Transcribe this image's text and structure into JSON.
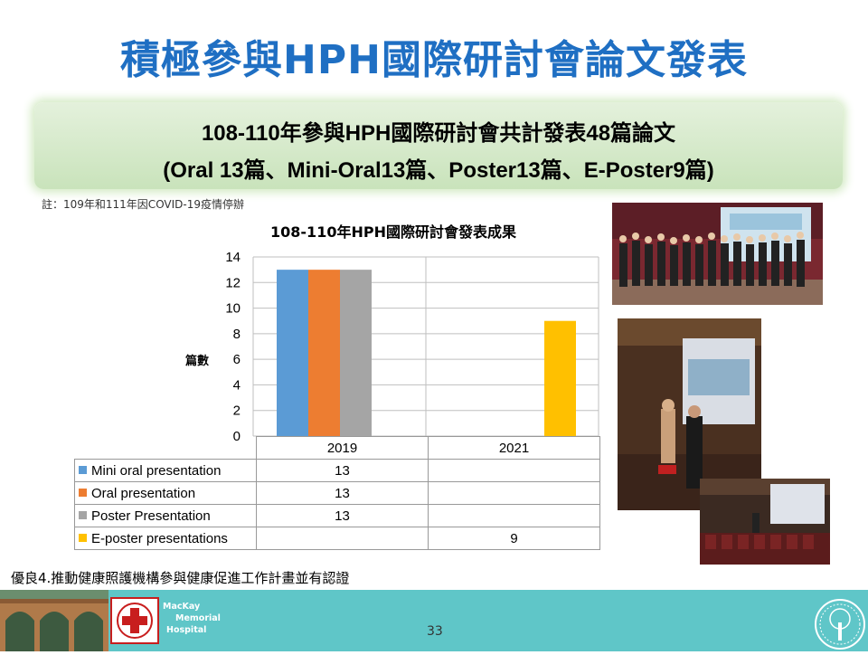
{
  "title": "積極參與HPH國際研討會論文發表",
  "banner": {
    "line1": "108-110年參與HPH國際研討會共計發表48篇論文",
    "line2": "(Oral 13篇、Mini-Oral13篇、Poster13篇、E-Poster9篇)"
  },
  "note": "註：109年和111年因COVID-19疫情停辦",
  "chart_data": {
    "type": "bar",
    "title": "108-110年HPH國際研討會發表成果",
    "ylabel": "篇數",
    "xlabel": "",
    "categories": [
      "2019",
      "2021"
    ],
    "ylim": [
      0,
      14
    ],
    "yticks": [
      0,
      2,
      4,
      6,
      8,
      10,
      12,
      14
    ],
    "grid": true,
    "legend": "table-below",
    "series": [
      {
        "name": "Mini oral presentation",
        "color": "#5b9bd5",
        "values": [
          13,
          null
        ]
      },
      {
        "name": "Oral presentation",
        "color": "#ed7d31",
        "values": [
          13,
          null
        ]
      },
      {
        "name": "Poster Presentation",
        "color": "#a5a5a5",
        "values": [
          13,
          null
        ]
      },
      {
        "name": "E-poster presentations",
        "color": "#ffc000",
        "values": [
          null,
          9
        ]
      }
    ],
    "table": [
      {
        "label": "Mini oral presentation",
        "color": "#5b9bd5",
        "v2019": "13",
        "v2021": ""
      },
      {
        "label": "Oral presentation",
        "color": "#ed7d31",
        "v2019": "13",
        "v2021": ""
      },
      {
        "label": "Poster Presentation",
        "color": "#a5a5a5",
        "v2019": "13",
        "v2021": ""
      },
      {
        "label": "E-poster presentations",
        "color": "#ffc000",
        "v2019": "",
        "v2021": "9"
      }
    ]
  },
  "footnote": "優良4.推動健康照護機構參與健康促進工作計畫並有認證",
  "footer": {
    "hospital_line1": "MacKay",
    "hospital_line2": "Memorial",
    "hospital_line3": "Hospital",
    "page_number": "33"
  },
  "colors": {
    "title": "#1f6fc3",
    "banner": "#d5ebc6",
    "footer": "#5fc6c8"
  }
}
